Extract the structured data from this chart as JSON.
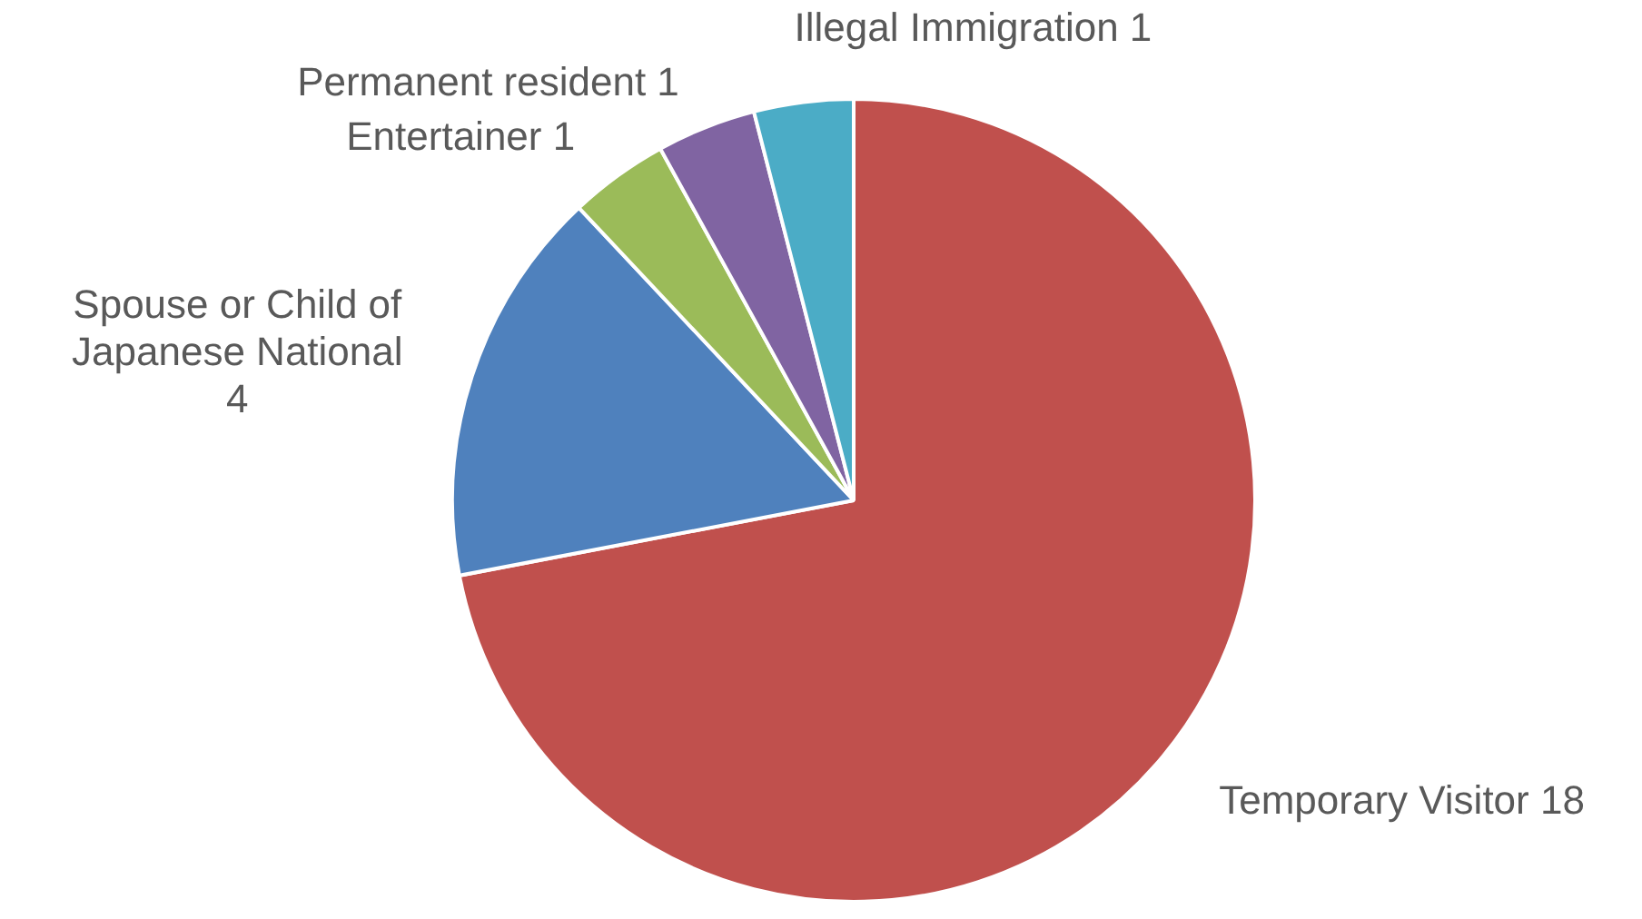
{
  "chart_data": {
    "type": "pie",
    "categories": [
      "Temporary Visitor",
      "Spouse or Child of Japanese National",
      "Entertainer",
      "Permanent resident",
      "Illegal Immigration"
    ],
    "values": [
      18,
      4,
      1,
      1,
      1
    ],
    "colors": [
      "#c0504d",
      "#4f81bd",
      "#9bbb59",
      "#8064a2",
      "#4bacc6"
    ],
    "data_labels": true
  }
}
